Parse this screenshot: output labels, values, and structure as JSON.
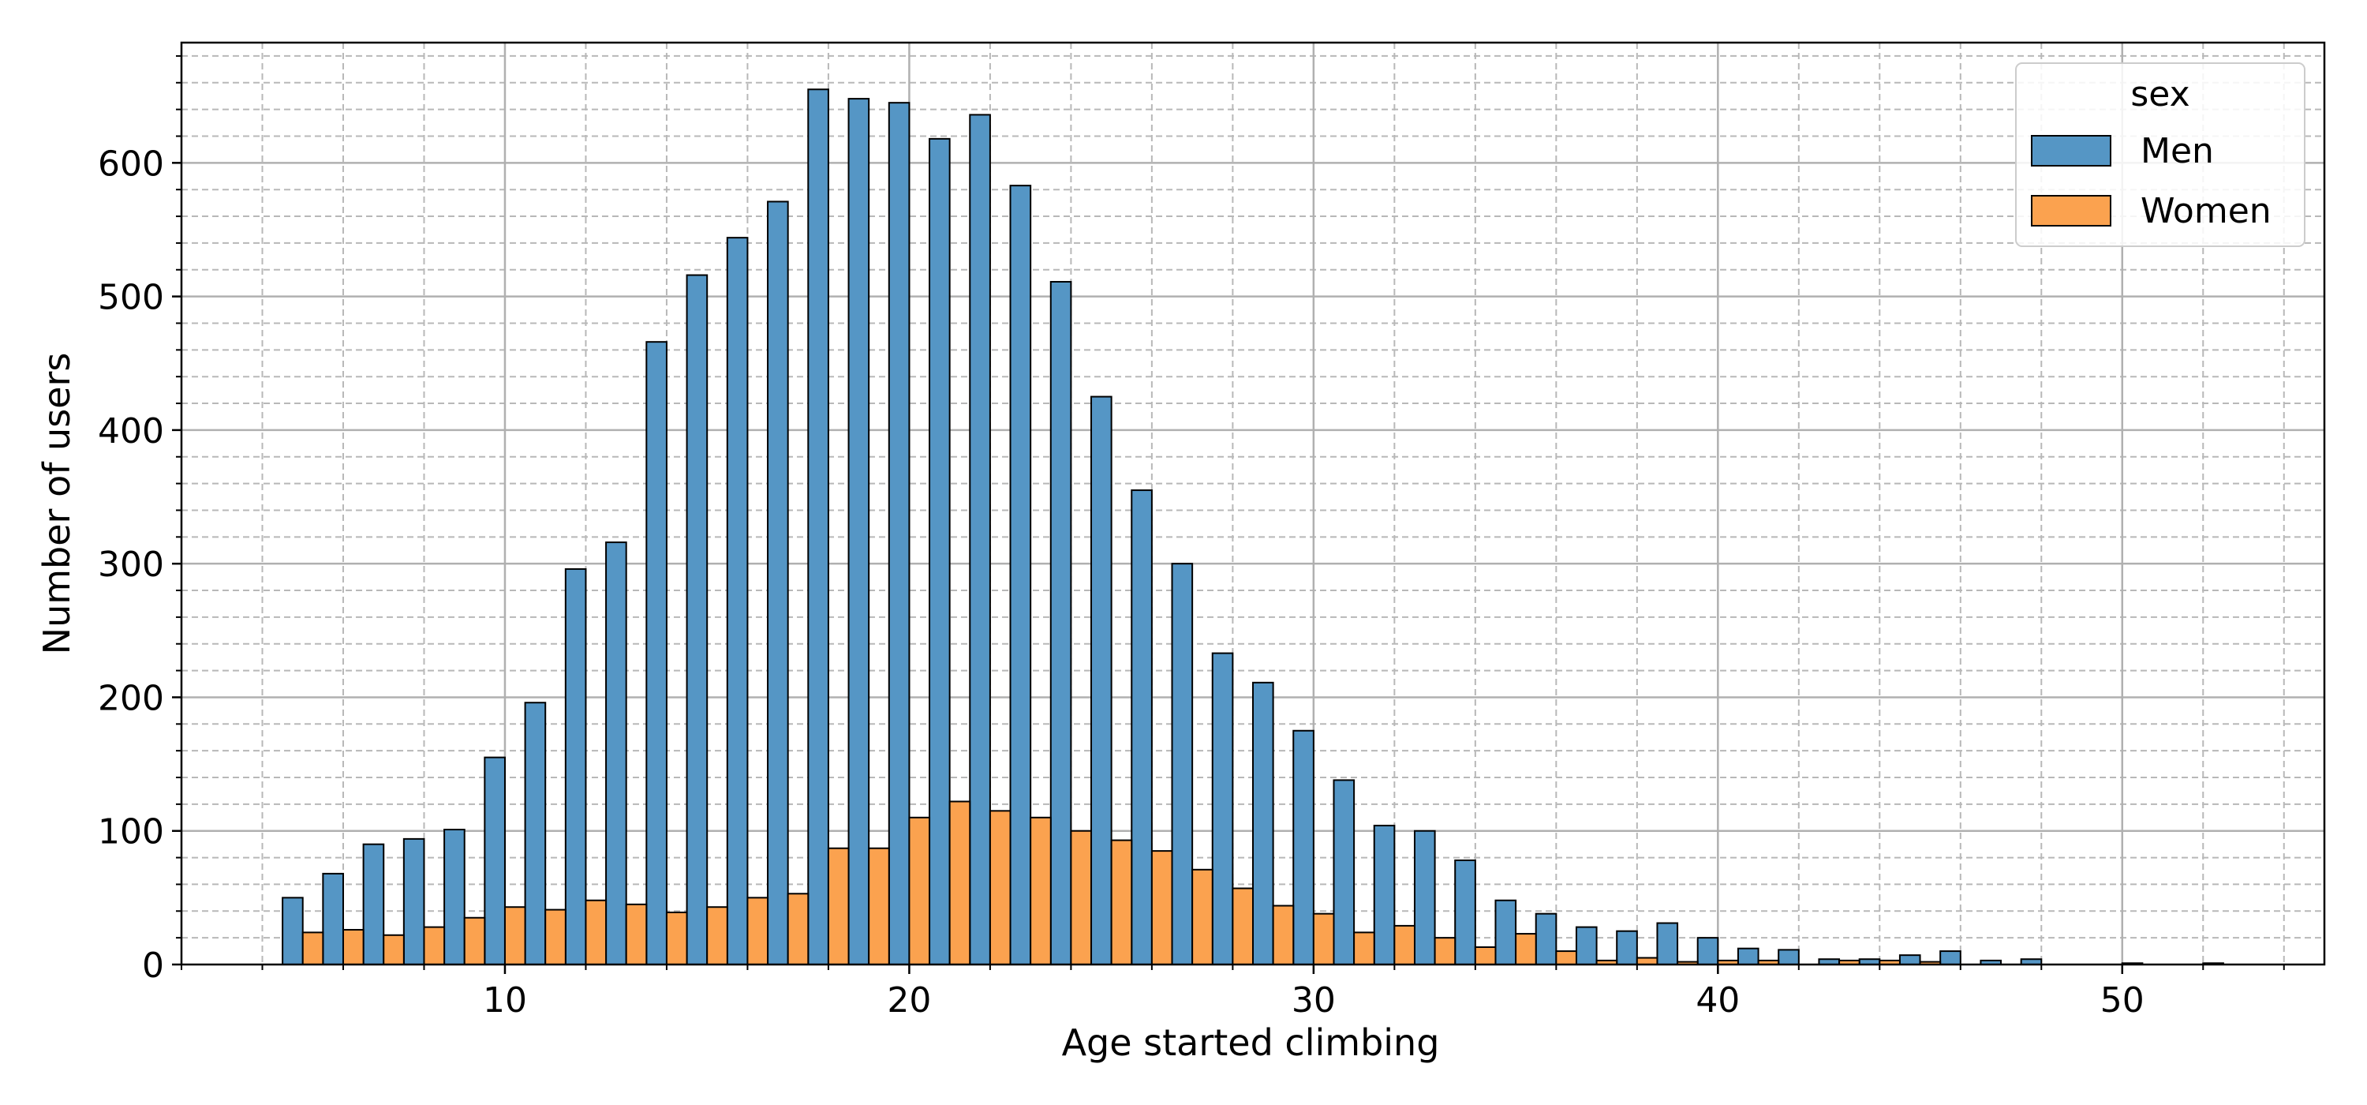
{
  "chart_data": {
    "type": "bar",
    "title": "",
    "xlabel": "Age started climbing",
    "ylabel": "Number of users",
    "xlim": [
      2,
      55
    ],
    "ylim": [
      0,
      690
    ],
    "xticks": [
      10,
      20,
      30,
      40,
      50
    ],
    "yticks": [
      0,
      100,
      200,
      300,
      400,
      500,
      600
    ],
    "grid": true,
    "legend": {
      "title": "sex",
      "placement": "top-right"
    },
    "x": [
      5,
      6,
      7,
      8,
      9,
      10,
      11,
      12,
      13,
      14,
      15,
      16,
      17,
      18,
      19,
      20,
      21,
      22,
      23,
      24,
      25,
      26,
      27,
      28,
      29,
      30,
      31,
      32,
      33,
      34,
      35,
      36,
      37,
      38,
      39,
      40,
      41,
      42,
      43,
      44,
      45,
      46,
      47,
      48,
      49,
      50,
      51,
      52
    ],
    "series": [
      {
        "name": "Men",
        "color": "#5596c5",
        "values": [
          50,
          68,
          90,
          94,
          101,
          155,
          196,
          296,
          316,
          466,
          516,
          544,
          571,
          655,
          648,
          645,
          618,
          636,
          583,
          511,
          425,
          355,
          300,
          233,
          211,
          175,
          138,
          104,
          100,
          78,
          48,
          38,
          28,
          25,
          31,
          20,
          12,
          11,
          4,
          4,
          7,
          10,
          3,
          4,
          0,
          0,
          0,
          0
        ]
      },
      {
        "name": "Women",
        "color": "#fba24f",
        "values": [
          24,
          26,
          22,
          28,
          35,
          43,
          41,
          48,
          45,
          39,
          43,
          50,
          53,
          87,
          87,
          110,
          122,
          115,
          110,
          100,
          93,
          85,
          71,
          57,
          44,
          38,
          24,
          29,
          20,
          13,
          23,
          10,
          3,
          5,
          2,
          3,
          3,
          0,
          3,
          3,
          2,
          0,
          0,
          0,
          0,
          1,
          0,
          1
        ]
      }
    ]
  }
}
